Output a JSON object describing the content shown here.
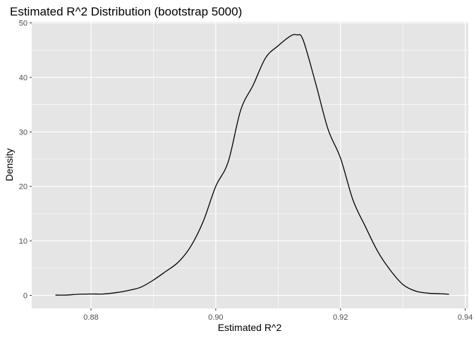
{
  "chart_data": {
    "type": "line",
    "title": "Estimated R^2 Distribution (bootstrap 5000)",
    "xlabel": "Estimated R^2",
    "ylabel": "Density",
    "xlim": [
      0.8705,
      0.9405
    ],
    "ylim": [
      -2.4,
      50.2
    ],
    "x_ticks": [
      0.88,
      0.9,
      0.92,
      0.94
    ],
    "x_tick_labels": [
      "0.88",
      "0.90",
      "0.92",
      "0.94"
    ],
    "y_ticks": [
      0,
      10,
      20,
      30,
      40,
      50
    ],
    "y_tick_labels": [
      "0",
      "10",
      "20",
      "30",
      "40",
      "50"
    ],
    "grid": true,
    "panel_background": "#e5e5e5",
    "grid_color": "#ffffff",
    "line_color": "#000000",
    "series": [
      {
        "name": "density",
        "x": [
          0.8743,
          0.876,
          0.878,
          0.88,
          0.882,
          0.884,
          0.886,
          0.888,
          0.89,
          0.892,
          0.894,
          0.896,
          0.898,
          0.9,
          0.902,
          0.904,
          0.906,
          0.908,
          0.91,
          0.912,
          0.913,
          0.914,
          0.916,
          0.918,
          0.92,
          0.922,
          0.924,
          0.926,
          0.928,
          0.93,
          0.932,
          0.934,
          0.936,
          0.9374
        ],
        "y": [
          0.05,
          0.05,
          0.2,
          0.25,
          0.25,
          0.5,
          0.9,
          1.5,
          2.8,
          4.4,
          6.1,
          9.0,
          13.6,
          20.0,
          24.5,
          34.0,
          38.6,
          43.6,
          45.8,
          47.6,
          47.8,
          46.9,
          39.0,
          30.5,
          25.2,
          17.5,
          12.6,
          8.0,
          4.6,
          2.0,
          0.8,
          0.4,
          0.3,
          0.2
        ]
      }
    ]
  }
}
